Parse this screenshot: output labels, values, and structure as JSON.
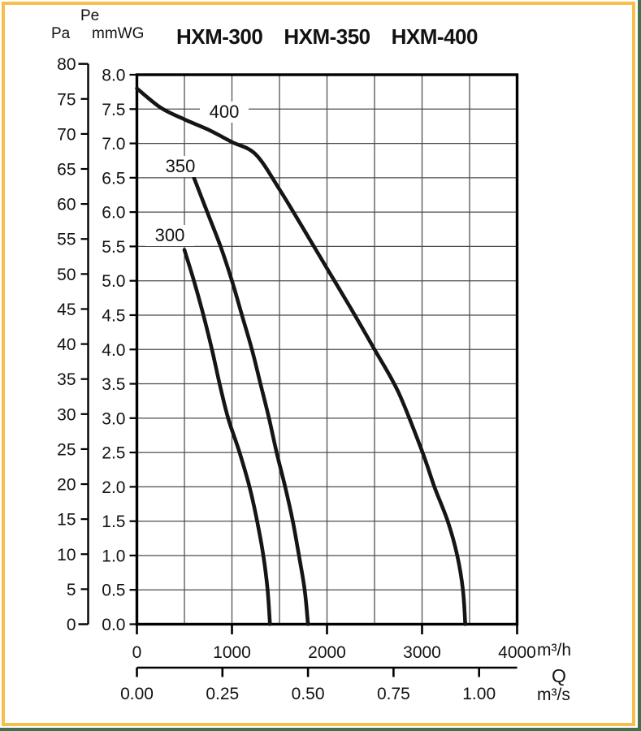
{
  "frame": {
    "gold_border_color": "#F6BE4D",
    "page_edge_color": "#42704E"
  },
  "header": {
    "pe_label": "Pe",
    "pa_label": "Pa",
    "mmwg_label": "mmWG"
  },
  "chart_data": {
    "type": "line",
    "title": "HXM-300  HXM-350  HXM-400",
    "models": [
      "HXM-300",
      "HXM-350",
      "HXM-400"
    ],
    "grid": true,
    "x_axis": {
      "label": "Q",
      "unit": "m³/h",
      "min": 0,
      "max": 4000,
      "tick_step": 1000,
      "grid_step": 500,
      "ticks": [
        0,
        1000,
        2000,
        3000,
        4000
      ]
    },
    "x_axis_secondary": {
      "unit": "m³/s",
      "factor_to_m3h": 3600,
      "tick_values": [
        0,
        0.25,
        0.5,
        0.75,
        1.0
      ],
      "tick_labels": [
        "0.00",
        "0.25",
        "0.50",
        "0.75",
        "1.00"
      ]
    },
    "y_axis": {
      "unit": "mmWG",
      "min": 0,
      "max": 8,
      "tick_step": 0.5
    },
    "y_axis_pa": {
      "unit": "Pa",
      "min": 0,
      "max": 80,
      "tick_step": 5,
      "pa_per_mmwg": 9.80665
    },
    "series": [
      {
        "name": "300",
        "model": "HXM-300",
        "points": [
          [
            500,
            5.45
          ],
          [
            600,
            5.0
          ],
          [
            700,
            4.5
          ],
          [
            790,
            4.0
          ],
          [
            870,
            3.5
          ],
          [
            960,
            3.0
          ],
          [
            1080,
            2.5
          ],
          [
            1185,
            2.0
          ],
          [
            1265,
            1.5
          ],
          [
            1330,
            1.0
          ],
          [
            1375,
            0.5
          ],
          [
            1400,
            0.0
          ]
        ]
      },
      {
        "name": "350",
        "model": "HXM-350",
        "points": [
          [
            600,
            6.5
          ],
          [
            740,
            6.0
          ],
          [
            880,
            5.5
          ],
          [
            1000,
            5.0
          ],
          [
            1105,
            4.5
          ],
          [
            1210,
            4.0
          ],
          [
            1300,
            3.5
          ],
          [
            1390,
            3.0
          ],
          [
            1470,
            2.5
          ],
          [
            1560,
            2.0
          ],
          [
            1640,
            1.5
          ],
          [
            1705,
            1.0
          ],
          [
            1765,
            0.5
          ],
          [
            1800,
            0.0
          ]
        ]
      },
      {
        "name": "400",
        "model": "HXM-400",
        "points": [
          [
            0,
            7.8
          ],
          [
            250,
            7.52
          ],
          [
            500,
            7.35
          ],
          [
            750,
            7.2
          ],
          [
            1000,
            7.02
          ],
          [
            1250,
            6.84
          ],
          [
            1500,
            6.33
          ],
          [
            1750,
            5.76
          ],
          [
            2000,
            5.18
          ],
          [
            2250,
            4.6
          ],
          [
            2500,
            4.0
          ],
          [
            2750,
            3.38
          ],
          [
            3000,
            2.52
          ],
          [
            3130,
            2.0
          ],
          [
            3270,
            1.5
          ],
          [
            3370,
            1.0
          ],
          [
            3430,
            0.5
          ],
          [
            3455,
            0.0
          ]
        ]
      }
    ]
  }
}
